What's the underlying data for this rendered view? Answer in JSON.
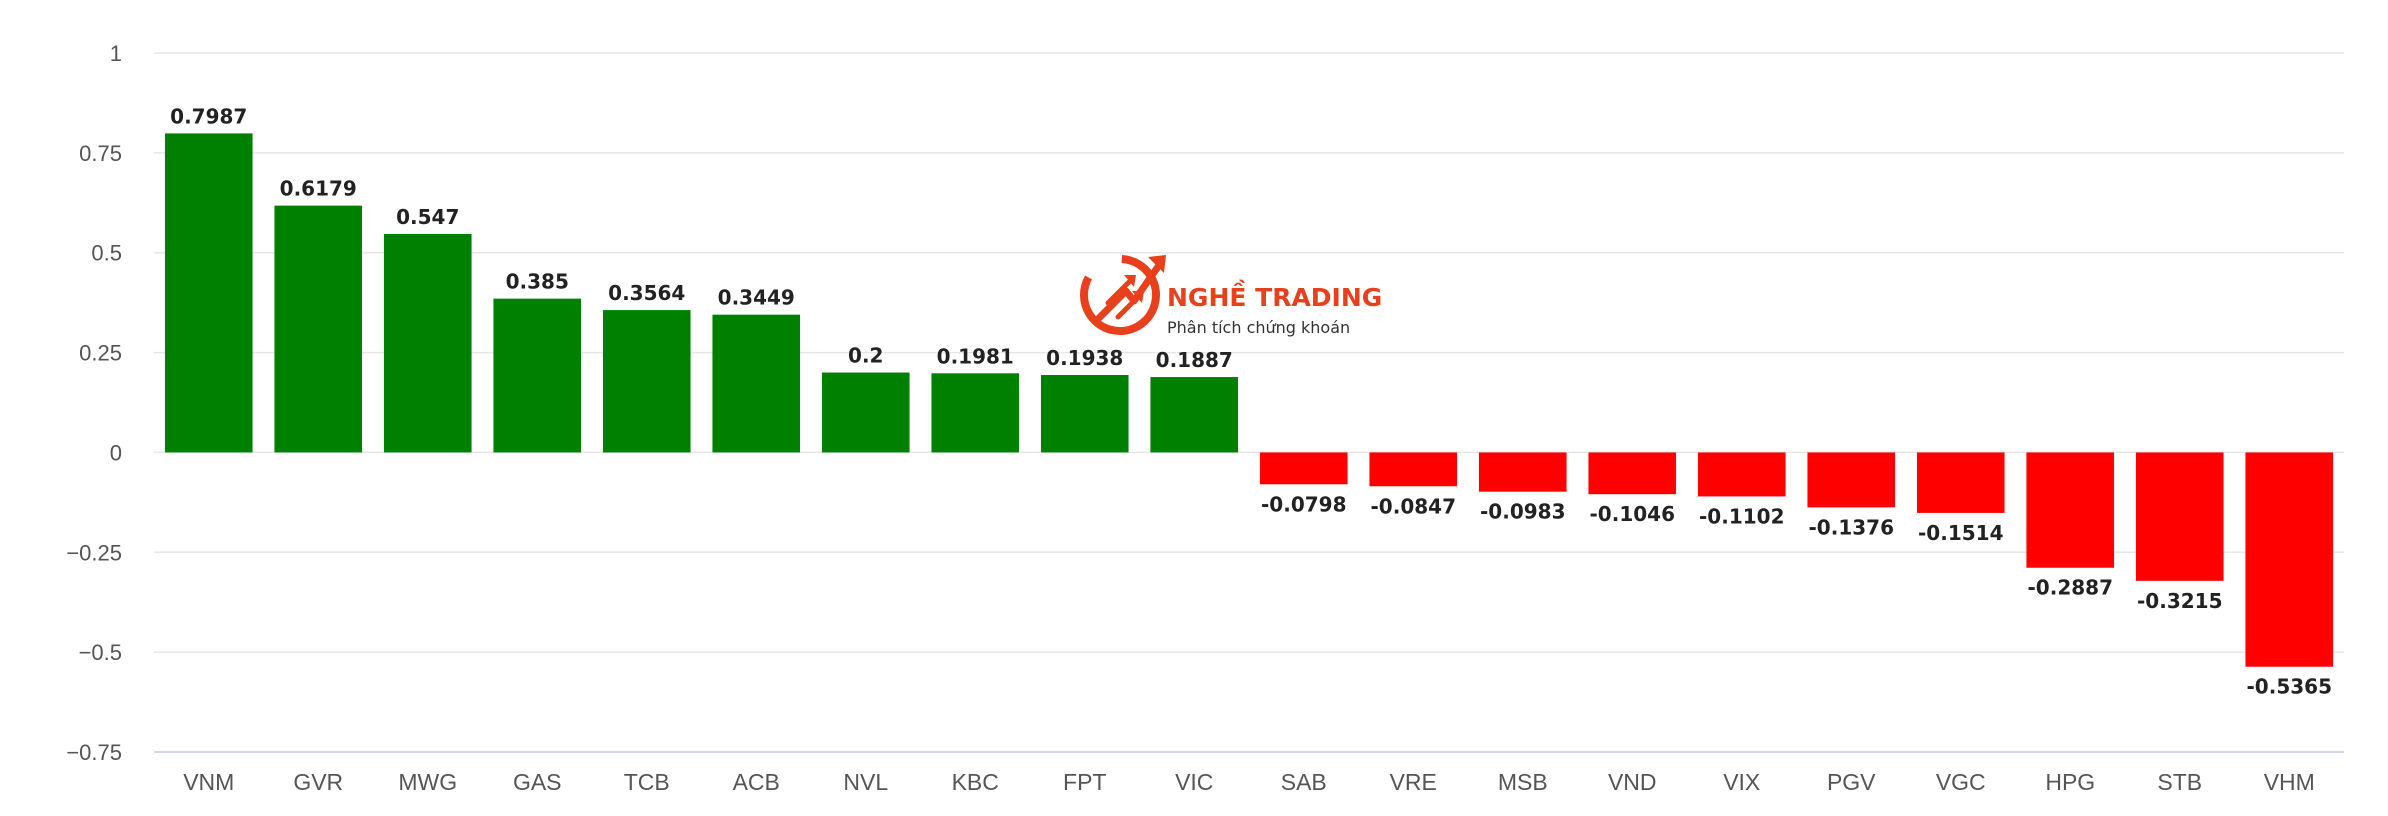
{
  "chart_data": {
    "type": "bar",
    "categories": [
      "VNM",
      "GVR",
      "MWG",
      "GAS",
      "TCB",
      "ACB",
      "NVL",
      "KBC",
      "FPT",
      "VIC",
      "SAB",
      "VRE",
      "MSB",
      "VND",
      "VIX",
      "PGV",
      "VGC",
      "HPG",
      "STB",
      "VHM"
    ],
    "values": [
      0.7987,
      0.6179,
      0.547,
      0.385,
      0.3564,
      0.3449,
      0.2,
      0.1981,
      0.1938,
      0.1887,
      -0.0798,
      -0.0847,
      -0.0983,
      -0.1046,
      -0.1102,
      -0.1376,
      -0.1514,
      -0.2887,
      -0.3215,
      -0.5365
    ],
    "data_labels": [
      "0.7987",
      "0.6179",
      "0.547",
      "0.385",
      "0.3564",
      "0.3449",
      "0.2",
      "0.1981",
      "0.1938",
      "0.1887",
      "-0.0798",
      "-0.0847",
      "-0.0983",
      "-0.1046",
      "-0.1102",
      "-0.1376",
      "-0.1514",
      "-0.2887",
      "-0.3215",
      "-0.5365"
    ],
    "y_ticks": [
      1,
      0.75,
      0.5,
      0.25,
      0,
      -0.25,
      -0.5,
      -0.75
    ],
    "y_tick_labels": [
      "1",
      "0.75",
      "0.5",
      "0.25",
      "0",
      "−0.25",
      "−0.5",
      "−0.75"
    ],
    "ylim": [
      -0.75,
      1
    ],
    "grid": true,
    "legend": "none",
    "colors": {
      "positive": "#008000",
      "negative": "#ff0000",
      "grid": "#e6e6e6",
      "axis": "#ccd6eb"
    },
    "title": "",
    "xlabel": "",
    "ylabel": ""
  },
  "watermark": {
    "brand_name": "NGHỀ TRADING",
    "tagline": "Phân tích chứng khoán",
    "color": "#e8401c"
  }
}
